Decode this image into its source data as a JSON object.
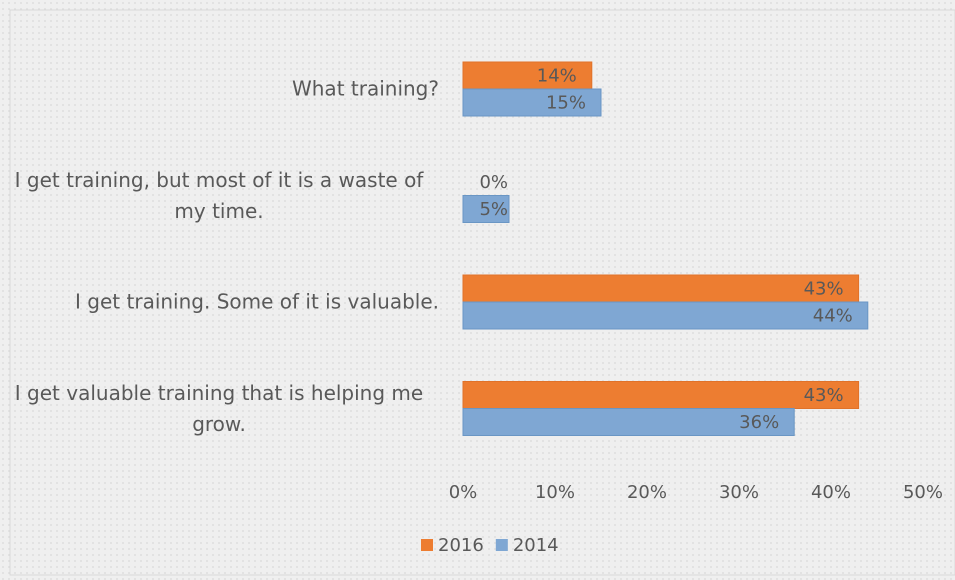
{
  "chart_data": {
    "type": "hbar",
    "categories": [
      "What training?",
      "I get training, but most of it is a waste of my time.",
      "I get training. Some of it is valuable.",
      "I get valuable training that is helping me grow."
    ],
    "series": [
      {
        "name": "2016",
        "color": "#ed7d31",
        "values": [
          14,
          0,
          43,
          43
        ],
        "value_labels": [
          "14%",
          "0%",
          "43%",
          "43%"
        ]
      },
      {
        "name": "2014",
        "color": "#7fa7d3",
        "values": [
          15,
          5,
          44,
          36
        ],
        "value_labels": [
          "15%",
          "5%",
          "44%",
          "36%"
        ]
      }
    ],
    "xlim": [
      0,
      50
    ],
    "xticks": [
      {
        "value": 0,
        "label": "0%"
      },
      {
        "value": 10,
        "label": "10%"
      },
      {
        "value": 20,
        "label": "20%"
      },
      {
        "value": 30,
        "label": "30%"
      },
      {
        "value": 40,
        "label": "40%"
      },
      {
        "value": 50,
        "label": "50%"
      }
    ],
    "legend": "bottom"
  }
}
